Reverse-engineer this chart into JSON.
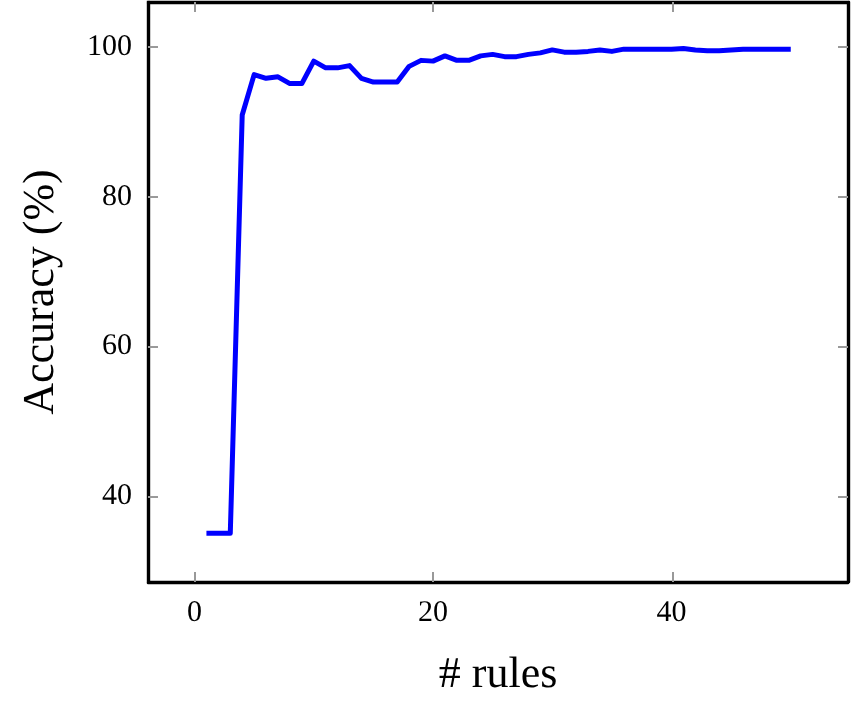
{
  "chart_data": {
    "type": "line",
    "xlabel": "# rules",
    "ylabel": "Accuracy (%)",
    "x": [
      1,
      2,
      3,
      4,
      5,
      6,
      7,
      8,
      9,
      10,
      11,
      12,
      13,
      14,
      15,
      16,
      17,
      18,
      19,
      20,
      21,
      22,
      23,
      24,
      25,
      26,
      27,
      28,
      29,
      30,
      31,
      32,
      33,
      34,
      35,
      36,
      37,
      38,
      39,
      40,
      41,
      42,
      43,
      44,
      45,
      46,
      47,
      48,
      49,
      50
    ],
    "series": [
      {
        "color": "#0000ff",
        "values": [
          35,
          35,
          35,
          90.9,
          96.3,
          95.8,
          96,
          95.1,
          95.1,
          98.1,
          97.2,
          97.2,
          97.5,
          95.8,
          95.3,
          95.3,
          95.3,
          97.4,
          98.2,
          98.1,
          98.8,
          98.2,
          98.2,
          98.8,
          99,
          98.7,
          98.7,
          99,
          99.2,
          99.6,
          99.3,
          99.3,
          99.4,
          99.6,
          99.4,
          99.7,
          99.7,
          99.7,
          99.7,
          99.7,
          99.8,
          99.6,
          99.5,
          99.5,
          99.6,
          99.7,
          99.7,
          99.7,
          99.7,
          99.7
        ]
      }
    ],
    "xlim": [
      -3.9,
      54.8
    ],
    "ylim": [
      28.5,
      106
    ],
    "xticks": [
      0,
      20,
      40
    ],
    "yticks": [
      40,
      60,
      80,
      100
    ],
    "grid": false,
    "marker": "none",
    "line_style": "solid"
  }
}
